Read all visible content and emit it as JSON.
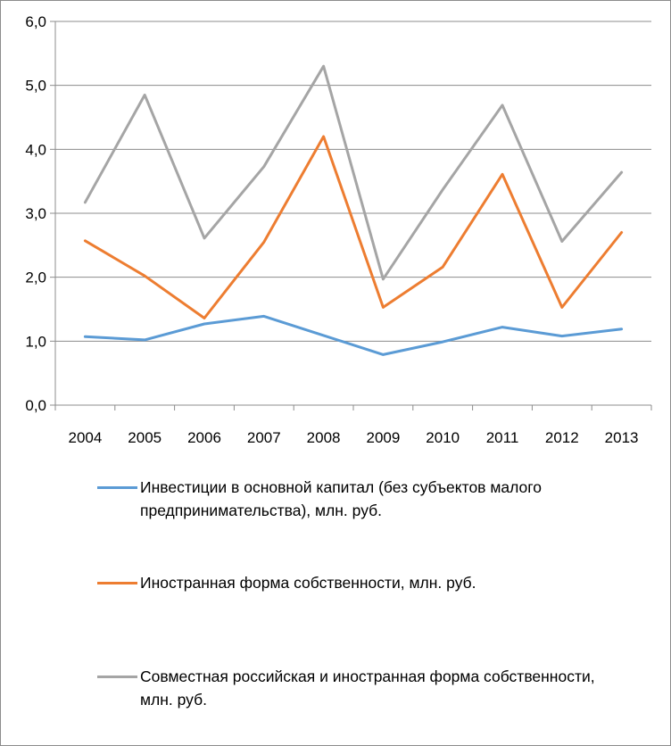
{
  "chart_data": {
    "type": "line",
    "categories": [
      "2004",
      "2005",
      "2006",
      "2007",
      "2008",
      "2009",
      "2010",
      "2011",
      "2012",
      "2013"
    ],
    "ylim": [
      0,
      6
    ],
    "yticks": [
      "0,0",
      "1,0",
      "2,0",
      "3,0",
      "4,0",
      "5,0",
      "6,0"
    ],
    "grid": true,
    "legend_position": "bottom",
    "series": [
      {
        "name": "Инвестиции в основной капитал (без субъектов малого предпринимательства), млн. руб.",
        "color": "#5b9bd5",
        "values": [
          1.07,
          1.02,
          1.27,
          1.39,
          1.09,
          0.79,
          0.99,
          1.22,
          1.08,
          1.19
        ]
      },
      {
        "name": "Иностранная форма собственности, млн. руб.",
        "color": "#ed7d31",
        "values": [
          2.57,
          2.02,
          1.36,
          2.55,
          4.2,
          1.53,
          2.16,
          3.61,
          1.53,
          2.7
        ]
      },
      {
        "name": "Совместная российская и иностранная форма собственности, млн. руб.",
        "color": "#a5a5a5",
        "values": [
          3.17,
          4.85,
          2.61,
          3.73,
          5.3,
          1.97,
          3.37,
          4.69,
          2.56,
          3.64
        ]
      }
    ]
  }
}
